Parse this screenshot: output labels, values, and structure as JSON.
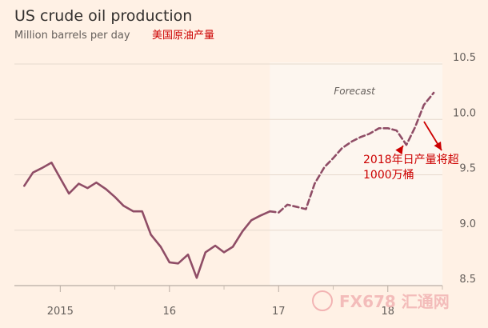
{
  "chart_data": {
    "type": "line",
    "title": "US crude oil production",
    "subtitle": "Million barrels per day",
    "subtitle_cn": "美国原油产量",
    "ylim": [
      8.5,
      10.5
    ],
    "y_ticks": [
      8.5,
      9.0,
      9.5,
      10.0,
      10.5
    ],
    "y_tick_labels": [
      "8.5",
      "9.0",
      "9.5",
      "10.0",
      "10.5"
    ],
    "xlim": [
      2014.58,
      2018.5
    ],
    "x_ticks": [
      2015,
      2016,
      2017,
      2018
    ],
    "x_tick_labels": [
      "2015",
      "16",
      "17",
      "18"
    ],
    "grid": true,
    "forecast_start": 2016.92,
    "forecast_label": "Forecast",
    "annotation": "2018年日产量将超\n1000万桶",
    "color_line": "#8f4d66",
    "color_annotation": "#cc0000",
    "color_forecast_bg": "#fdf6ef",
    "series": [
      {
        "style": "solid",
        "x": [
          2014.67,
          2014.75,
          2014.83,
          2014.92,
          2015.0,
          2015.08,
          2015.17,
          2015.25,
          2015.33,
          2015.42,
          2015.5,
          2015.58,
          2015.67,
          2015.75,
          2015.83,
          2015.92,
          2016.0,
          2016.08,
          2016.17,
          2016.25,
          2016.33,
          2016.42,
          2016.5,
          2016.58,
          2016.67,
          2016.75,
          2016.83,
          2016.92
        ],
        "y": [
          9.4,
          9.52,
          9.56,
          9.61,
          9.47,
          9.33,
          9.42,
          9.38,
          9.43,
          9.37,
          9.3,
          9.22,
          9.17,
          9.17,
          8.96,
          8.85,
          8.71,
          8.7,
          8.78,
          8.57,
          8.8,
          8.86,
          8.8,
          8.85,
          8.99,
          9.09,
          9.13,
          9.17
        ]
      },
      {
        "style": "dashed",
        "x": [
          2016.92,
          2017.0,
          2017.08,
          2017.17,
          2017.25,
          2017.33,
          2017.42,
          2017.5,
          2017.58,
          2017.67,
          2017.75,
          2017.83,
          2017.92,
          2018.0,
          2018.08,
          2018.17,
          2018.25,
          2018.33,
          2018.42
        ],
        "y": [
          9.17,
          9.16,
          9.23,
          9.21,
          9.19,
          9.42,
          9.57,
          9.65,
          9.74,
          9.8,
          9.84,
          9.87,
          9.92,
          9.92,
          9.9,
          9.77,
          9.93,
          10.13,
          10.24
        ]
      }
    ]
  },
  "watermark_text": "FX678 汇通网"
}
